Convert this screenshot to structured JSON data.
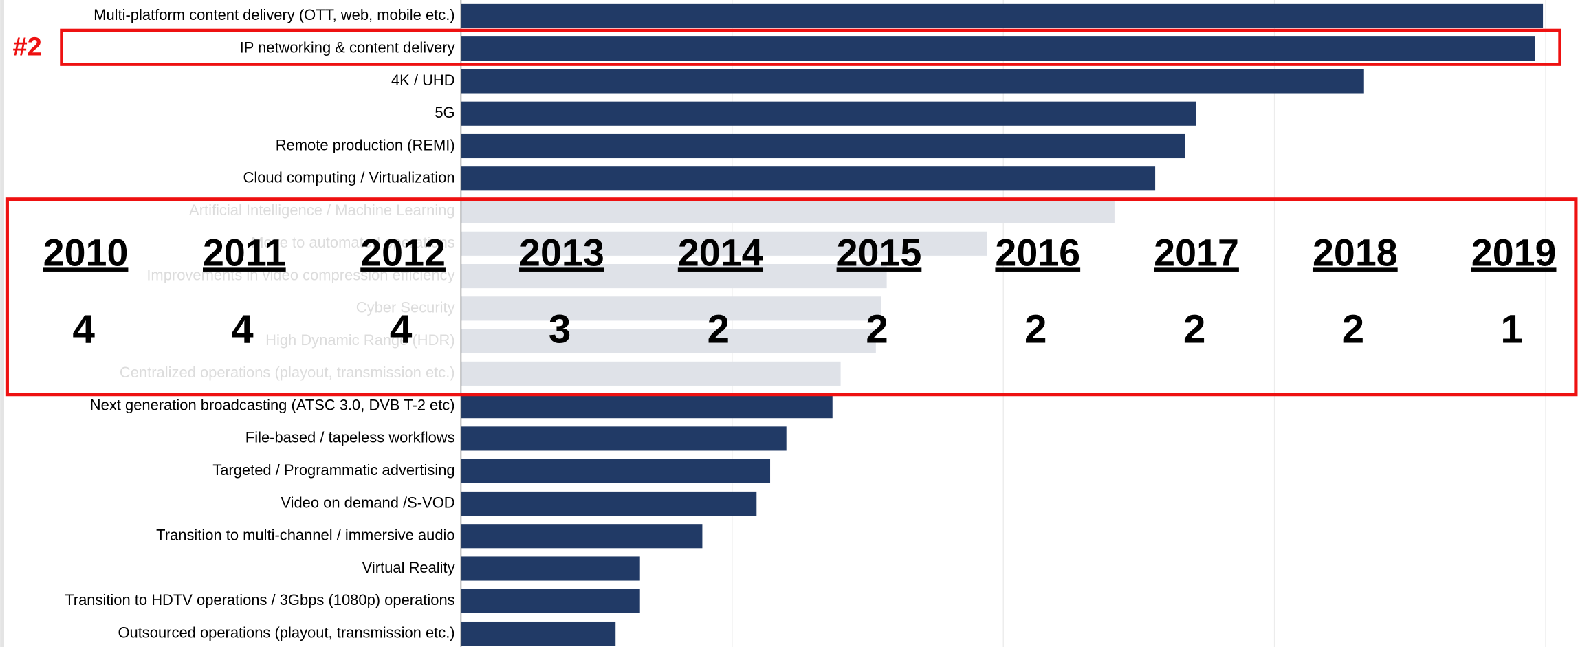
{
  "chart_data": {
    "type": "barh",
    "categories": [
      "Multi-platform content delivery (OTT, web, mobile etc.)",
      "IP networking & content delivery",
      "4K / UHD",
      "5G",
      "Remote production (REMI)",
      "Cloud computing / Virtualization",
      "Artificial Intelligence / Machine Learning",
      "Move to automated operations",
      "Improvements in video compression efficiency",
      "Cyber Security",
      "High Dynamic Range (HDR)",
      "Centralized operations (playout, transmission etc.)",
      "Next generation broadcasting (ATSC 3.0, DVB T-2 etc)",
      "File-based / tapeless workflows",
      "Targeted / Programmatic advertising",
      "Video on demand /S-VOD",
      "Transition to multi-channel / immersive audio",
      "Virtual Reality",
      "Transition to HDTV operations / 3Gbps (1080p) operations",
      "Outsourced operations (playout, transmission etc.)"
    ],
    "values": [
      3.99,
      3.96,
      3.33,
      2.71,
      2.67,
      2.56,
      2.41,
      1.94,
      1.57,
      1.55,
      1.53,
      1.4,
      1.37,
      1.2,
      1.14,
      1.09,
      0.89,
      0.66,
      0.66,
      0.57
    ],
    "colors": [
      "#213a66",
      "#213a66",
      "#213a66",
      "#213a66",
      "#213a66",
      "#213a66",
      "#dfe2e8",
      "#dfe2e8",
      "#dfe2e8",
      "#dfe2e8",
      "#dfe2e8",
      "#dfe2e8",
      "#213a66",
      "#213a66",
      "#213a66",
      "#213a66",
      "#213a66",
      "#213a66",
      "#213a66",
      "#213a66"
    ],
    "xlim": [
      0,
      4
    ],
    "xticks": [
      1,
      2,
      3,
      4
    ],
    "grid": true,
    "annotation": "#2",
    "overlay": {
      "years": [
        "2010",
        "2011",
        "2012",
        "2013",
        "2014",
        "2015",
        "2016",
        "2017",
        "2018",
        "2019"
      ],
      "ranks": [
        4,
        4,
        4,
        3,
        2,
        2,
        2,
        2,
        2,
        1
      ]
    }
  }
}
